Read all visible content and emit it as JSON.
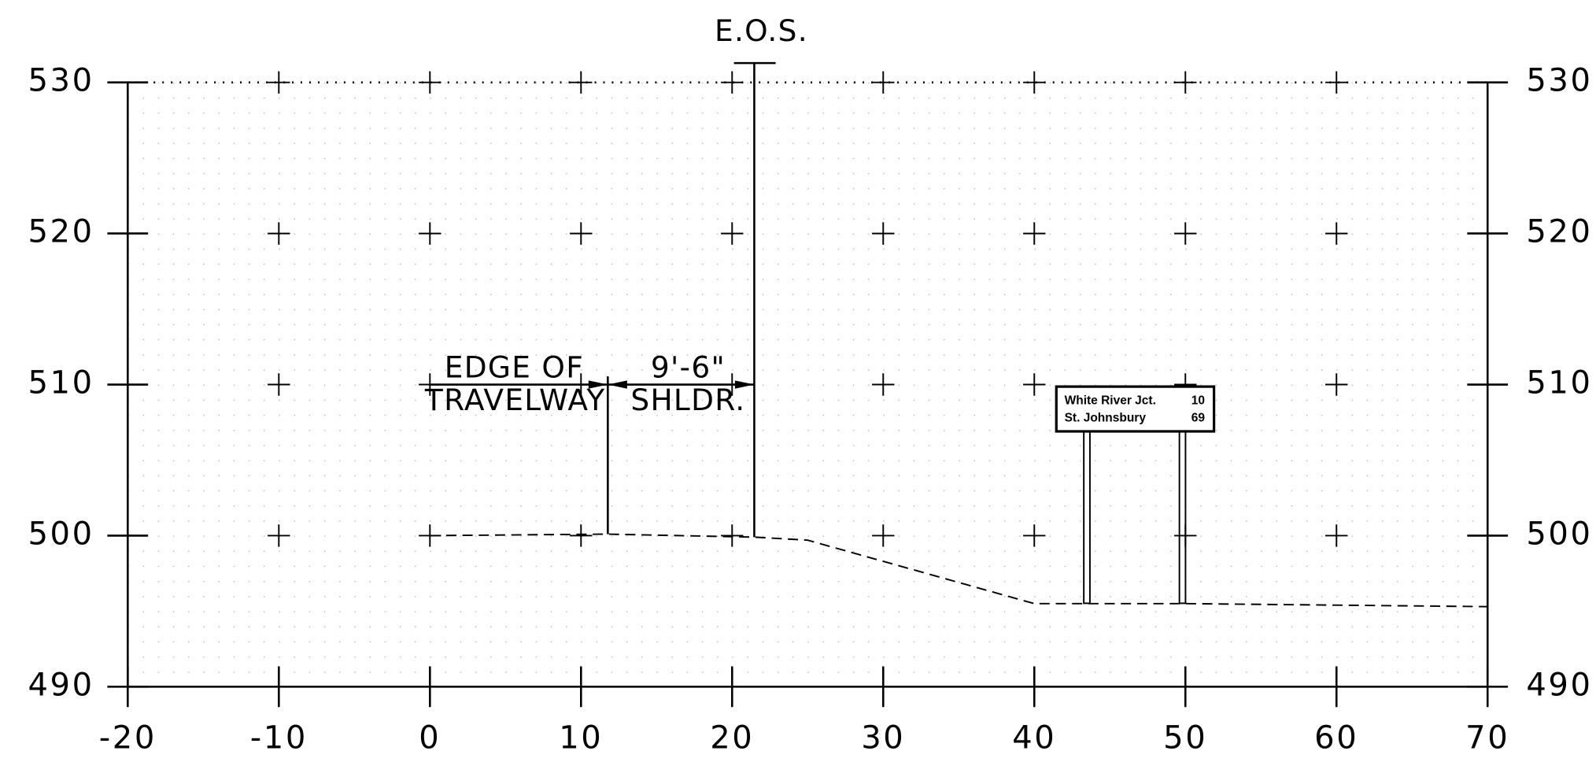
{
  "chart_data": {
    "type": "line",
    "xlim": [
      -20,
      70
    ],
    "ylim": [
      490,
      530
    ],
    "xticks": [
      -20,
      -10,
      0,
      10,
      20,
      30,
      40,
      50,
      60,
      70
    ],
    "yticks": [
      490,
      500,
      510,
      520,
      530
    ],
    "grid": true,
    "x": [
      0,
      11.7,
      21.5,
      25,
      40,
      50,
      70
    ],
    "series": [
      {
        "color": "#000000",
        "values": [
          500,
          500.1,
          499.9,
          499.7,
          495.5,
          495.5,
          495.3
        ]
      }
    ],
    "annotations": {
      "eos": "E.O.S.",
      "edge_of": "EDGE OF",
      "travelway": "TRAVELWAY",
      "dimension": "9'-6\"",
      "shoulder": "SHLDR."
    },
    "sign": {
      "line1": "White River Jct.",
      "num1": "10",
      "line2": "St. Johnsbury",
      "num2": "69"
    }
  }
}
